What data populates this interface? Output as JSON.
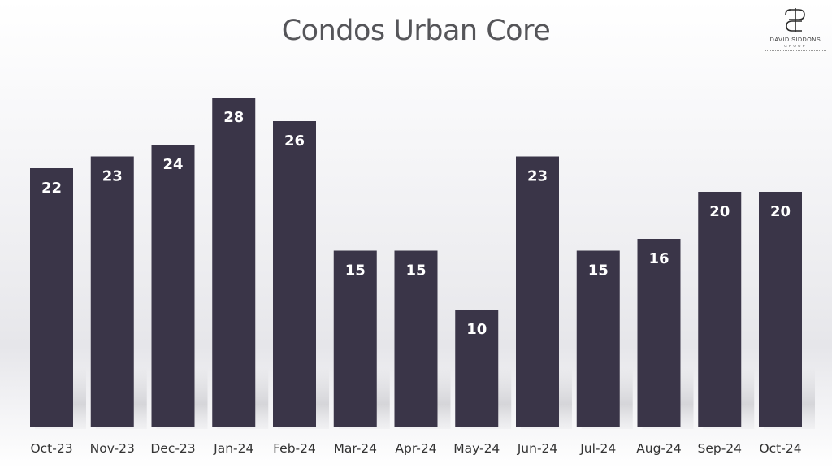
{
  "logo": {
    "line1": "DAVID SIDDONS",
    "line2": "GROUP"
  },
  "chart_data": {
    "type": "bar",
    "title": "Condos Urban Core",
    "xlabel": "",
    "ylabel": "",
    "categories": [
      "Oct-23",
      "Nov-23",
      "Dec-23",
      "Jan-24",
      "Feb-24",
      "Mar-24",
      "Apr-24",
      "May-24",
      "Jun-24",
      "Jul-24",
      "Aug-24",
      "Sep-24",
      "Oct-24"
    ],
    "values": [
      22,
      23,
      24,
      28,
      26,
      15,
      15,
      10,
      23,
      15,
      16,
      20,
      20
    ],
    "ylim": [
      0,
      28
    ],
    "grid": false,
    "legend": "none",
    "bar_color": "#3a3548",
    "label_color": "#ffffff"
  }
}
